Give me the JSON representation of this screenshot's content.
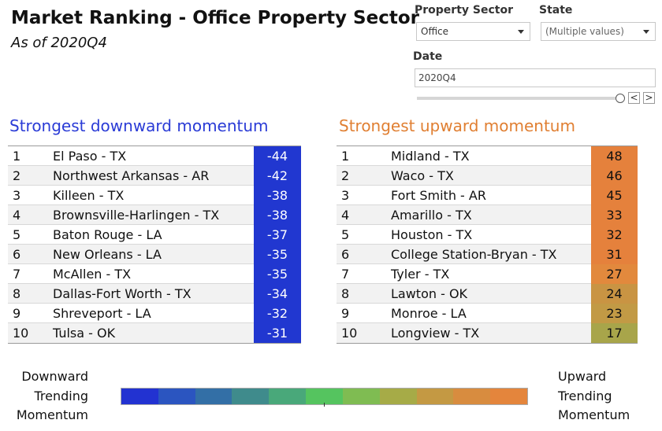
{
  "header": {
    "title": "Market Ranking - Office Property Sector",
    "subtitle": "As of 2020Q4"
  },
  "filters": {
    "property_sector": {
      "label": "Property Sector",
      "value": "Office"
    },
    "state": {
      "label": "State",
      "value": "(Multiple values)"
    },
    "date": {
      "label": "Date",
      "value": "2020Q4",
      "prev_symbol": "<",
      "next_symbol": ">",
      "slider_position": 1.0
    }
  },
  "downward": {
    "title": "Strongest downward momentum",
    "color": "#2137d0",
    "rows": [
      {
        "rank": "1",
        "market": "El Paso - TX",
        "score": "-44"
      },
      {
        "rank": "2",
        "market": "Northwest Arkansas - AR",
        "score": "-42"
      },
      {
        "rank": "3",
        "market": "Killeen - TX",
        "score": "-38"
      },
      {
        "rank": "4",
        "market": "Brownsville-Harlingen - TX",
        "score": "-38"
      },
      {
        "rank": "5",
        "market": "Baton Rouge - LA",
        "score": "-37"
      },
      {
        "rank": "6",
        "market": "New Orleans - LA",
        "score": "-35"
      },
      {
        "rank": "7",
        "market": "McAllen - TX",
        "score": "-35"
      },
      {
        "rank": "8",
        "market": "Dallas-Fort Worth - TX",
        "score": "-34"
      },
      {
        "rank": "9",
        "market": "Shreveport - LA",
        "score": "-32"
      },
      {
        "rank": "10",
        "market": "Tulsa - OK",
        "score": "-31"
      }
    ]
  },
  "upward": {
    "title": "Strongest upward momentum",
    "rows": [
      {
        "rank": "1",
        "market": "Midland - TX",
        "score": "48",
        "color": "#e5813c"
      },
      {
        "rank": "2",
        "market": "Waco - TX",
        "score": "46",
        "color": "#e5813c"
      },
      {
        "rank": "3",
        "market": "Fort Smith - AR",
        "score": "45",
        "color": "#e5813c"
      },
      {
        "rank": "4",
        "market": "Amarillo - TX",
        "score": "33",
        "color": "#e5813c"
      },
      {
        "rank": "5",
        "market": "Houston - TX",
        "score": "32",
        "color": "#e5813c"
      },
      {
        "rank": "6",
        "market": "College Station-Bryan - TX",
        "score": "31",
        "color": "#e5813c"
      },
      {
        "rank": "7",
        "market": "Tyler - TX",
        "score": "27",
        "color": "#e2893d"
      },
      {
        "rank": "8",
        "market": "Lawton - OK",
        "score": "24",
        "color": "#c99443"
      },
      {
        "rank": "9",
        "market": "Monroe - LA",
        "score": "23",
        "color": "#c29a45"
      },
      {
        "rank": "10",
        "market": "Longview - TX",
        "score": "17",
        "color": "#a8a54a"
      }
    ]
  },
  "legend": {
    "left_lines": [
      "Downward",
      "Trending",
      "Momentum"
    ],
    "right_lines": [
      "Upward",
      "Trending",
      "Momentum"
    ],
    "colors": [
      "#2232d1",
      "#2b55c0",
      "#336fa6",
      "#3f8b8c",
      "#49a87a",
      "#55c45f",
      "#7fbc52",
      "#a6ab47",
      "#c49943",
      "#d88c3f",
      "#e4853c"
    ]
  }
}
